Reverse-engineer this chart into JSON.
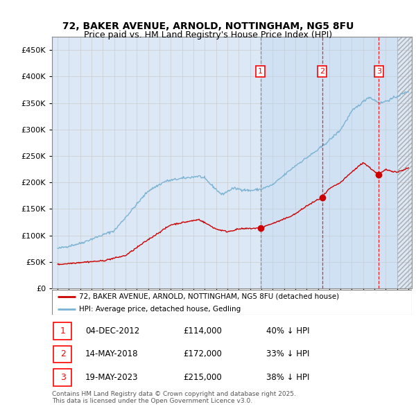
{
  "title": "72, BAKER AVENUE, ARNOLD, NOTTINGHAM, NG5 8FU",
  "subtitle": "Price paid vs. HM Land Registry's House Price Index (HPI)",
  "ytick_values": [
    0,
    50000,
    100000,
    150000,
    200000,
    250000,
    300000,
    350000,
    400000,
    450000
  ],
  "ylim": [
    0,
    475000
  ],
  "xlim_start": 1994.5,
  "xlim_end": 2026.3,
  "hpi_color": "#7ab3d4",
  "price_color": "#cc0000",
  "bg_color_left": "#dce8f5",
  "bg_color_right": "#c8dcf0",
  "marker_dates": [
    2012.92,
    2018.37,
    2023.38
  ],
  "marker_prices": [
    114000,
    172000,
    215000
  ],
  "marker_labels": [
    "1",
    "2",
    "3"
  ],
  "shade_start": 2012.92,
  "future_start": 2025.0,
  "legend_label_red": "72, BAKER AVENUE, ARNOLD, NOTTINGHAM, NG5 8FU (detached house)",
  "legend_label_blue": "HPI: Average price, detached house, Gedling",
  "table_entries": [
    {
      "num": "1",
      "date": "04-DEC-2012",
      "price": "£114,000",
      "pct": "40% ↓ HPI"
    },
    {
      "num": "2",
      "date": "14-MAY-2018",
      "price": "£172,000",
      "pct": "33% ↓ HPI"
    },
    {
      "num": "3",
      "date": "19-MAY-2023",
      "price": "£215,000",
      "pct": "38% ↓ HPI"
    }
  ],
  "footnote": "Contains HM Land Registry data © Crown copyright and database right 2025.\nThis data is licensed under the Open Government Licence v3.0."
}
